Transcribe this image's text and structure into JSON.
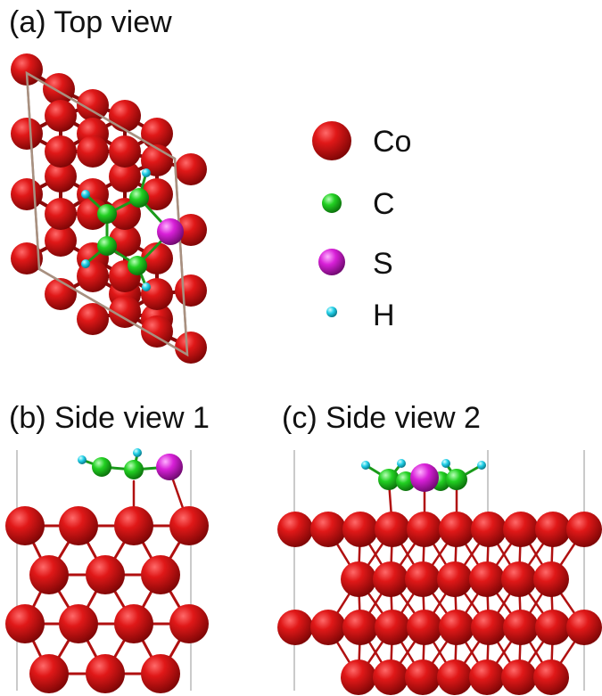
{
  "panels": {
    "a": "(a) Top view",
    "b": "(b) Side view 1",
    "c": "(c) Side view 2"
  },
  "legend": [
    {
      "element": "Co",
      "color": "#d60f0f"
    },
    {
      "element": "C",
      "color": "#1ed41e"
    },
    {
      "element": "S",
      "color": "#d81ed8"
    },
    {
      "element": "H",
      "color": "#22d8e8"
    }
  ],
  "colors": {
    "co": "#cc1111",
    "c": "#1ec81e",
    "s": "#c81ec8",
    "h": "#22d0e8",
    "cell": "#a89080",
    "bond": "#b01010"
  }
}
